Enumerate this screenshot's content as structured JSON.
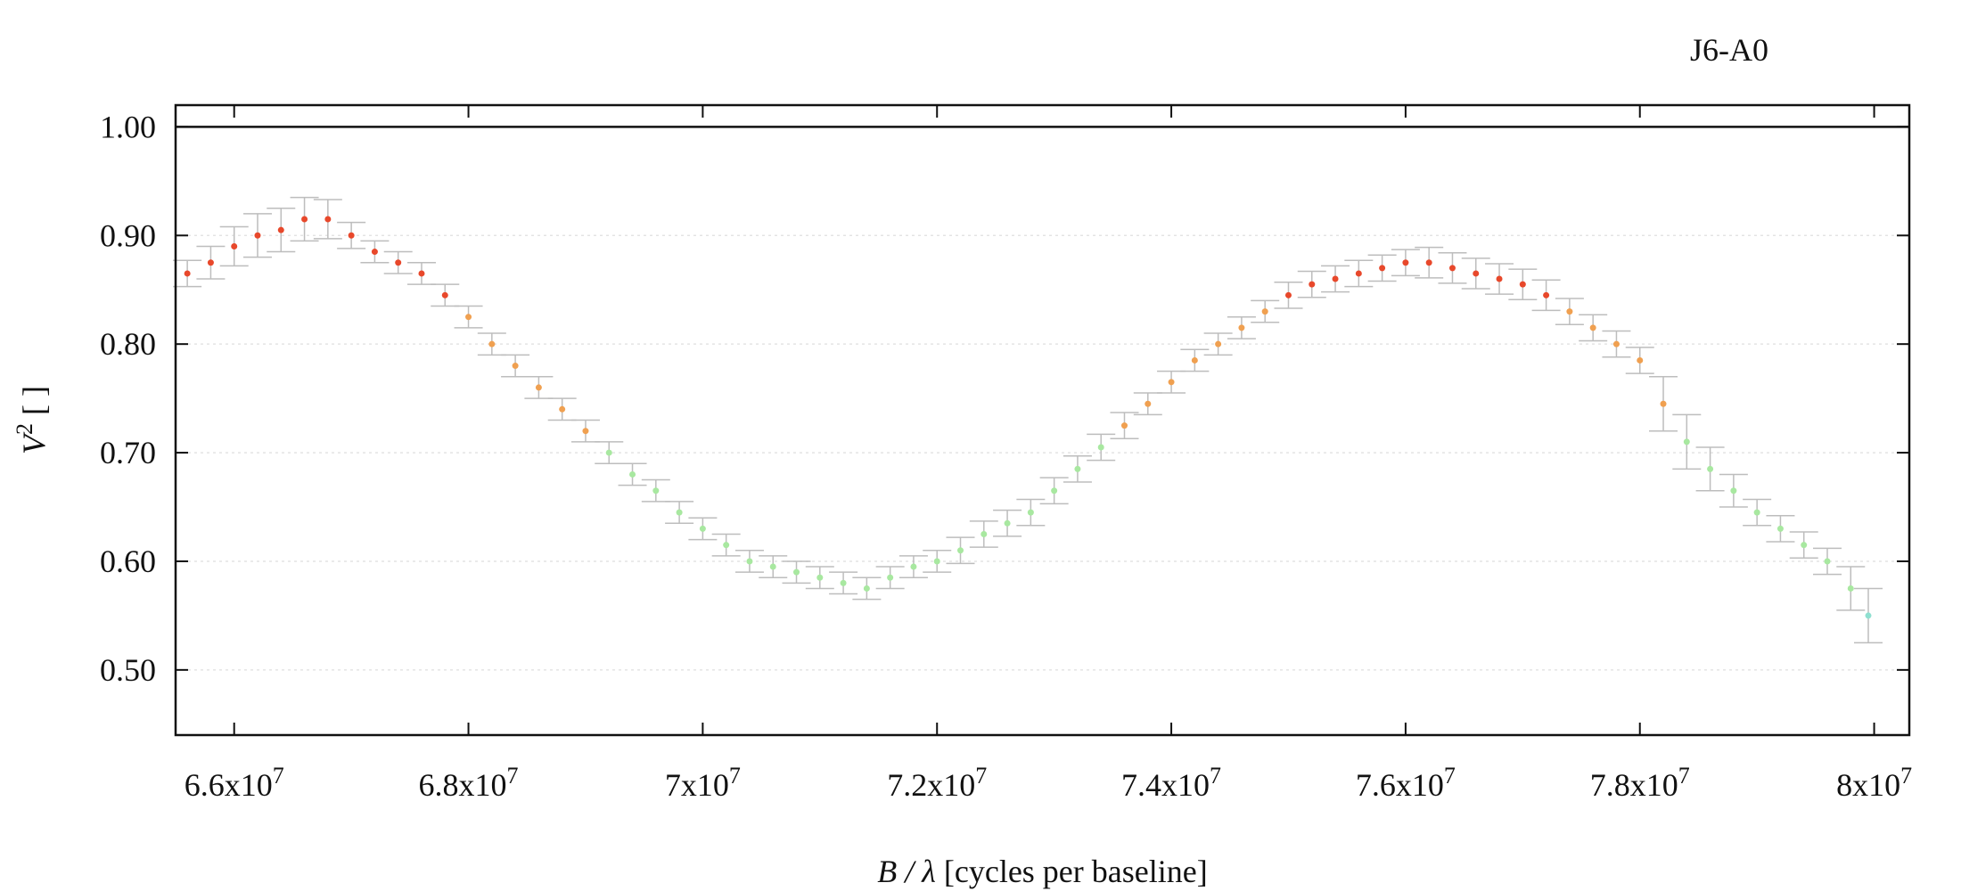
{
  "chart_data": {
    "type": "scatter",
    "title": "J6-A0",
    "xlabel": "B / λ [cycles per baseline]",
    "ylabel": "V² [ ]",
    "xlim": [
      65500000,
      80300000
    ],
    "ylim": [
      0.44,
      1.02
    ],
    "grid": {
      "x": false,
      "y": true
    },
    "reference_line": 1.0,
    "x_ticks": [
      {
        "value": 66000000,
        "label": "6.6x10",
        "exp": "7"
      },
      {
        "value": 68000000,
        "label": "6.8x10",
        "exp": "7"
      },
      {
        "value": 70000000,
        "label": "7x10",
        "exp": "7"
      },
      {
        "value": 72000000,
        "label": "7.2x10",
        "exp": "7"
      },
      {
        "value": 74000000,
        "label": "7.4x10",
        "exp": "7"
      },
      {
        "value": 76000000,
        "label": "7.6x10",
        "exp": "7"
      },
      {
        "value": 78000000,
        "label": "7.8x10",
        "exp": "7"
      },
      {
        "value": 80000000,
        "label": "8x10",
        "exp": "7"
      }
    ],
    "y_ticks": [
      {
        "value": 0.5,
        "label": "0.50"
      },
      {
        "value": 0.6,
        "label": "0.60"
      },
      {
        "value": 0.7,
        "label": "0.70"
      },
      {
        "value": 0.8,
        "label": "0.80"
      },
      {
        "value": 0.9,
        "label": "0.90"
      },
      {
        "value": 1.0,
        "label": "1.00"
      }
    ],
    "colors": {
      "high": "#e8482b",
      "mid": "#f0a050",
      "low": "#a8e8a0",
      "cyan": "#8fe0d0",
      "errorbar": "#bdbdbd"
    },
    "series": [
      {
        "x": [
          65600000,
          65800000,
          66000000,
          66200000,
          66400000,
          66600000,
          66800000,
          67000000,
          67200000,
          67400000,
          67600000,
          67800000,
          68000000,
          68200000,
          68400000,
          68600000,
          68800000,
          69000000,
          69200000,
          69400000,
          69600000,
          69800000,
          70000000,
          70200000,
          70400000,
          70600000,
          70800000,
          71000000,
          71200000,
          71400000,
          71600000,
          71800000,
          72000000,
          72200000,
          72400000,
          72600000,
          72800000,
          73000000,
          73200000,
          73400000,
          73600000,
          73800000,
          74000000,
          74200000,
          74400000,
          74600000,
          74800000,
          75000000,
          75200000,
          75400000,
          75600000,
          75800000,
          76000000,
          76200000,
          76400000,
          76600000,
          76800000,
          77000000,
          77200000,
          77400000,
          77600000,
          77800000,
          78000000,
          78200000,
          78400000,
          78600000,
          78800000,
          79000000,
          79200000,
          79400000,
          79600000,
          79800000,
          79950000
        ],
        "y": [
          0.865,
          0.875,
          0.89,
          0.9,
          0.905,
          0.915,
          0.915,
          0.9,
          0.885,
          0.875,
          0.865,
          0.845,
          0.825,
          0.8,
          0.78,
          0.76,
          0.74,
          0.72,
          0.7,
          0.68,
          0.665,
          0.645,
          0.63,
          0.615,
          0.6,
          0.595,
          0.59,
          0.585,
          0.58,
          0.575,
          0.585,
          0.595,
          0.6,
          0.61,
          0.625,
          0.635,
          0.645,
          0.665,
          0.685,
          0.705,
          0.725,
          0.745,
          0.765,
          0.785,
          0.8,
          0.815,
          0.83,
          0.845,
          0.855,
          0.86,
          0.865,
          0.87,
          0.875,
          0.875,
          0.87,
          0.865,
          0.86,
          0.855,
          0.845,
          0.83,
          0.815,
          0.8,
          0.785,
          0.745,
          0.71,
          0.685,
          0.665,
          0.645,
          0.63,
          0.615,
          0.6,
          0.575,
          0.55
        ],
        "err": [
          0.012,
          0.015,
          0.018,
          0.02,
          0.02,
          0.02,
          0.018,
          0.012,
          0.01,
          0.01,
          0.01,
          0.01,
          0.01,
          0.01,
          0.01,
          0.01,
          0.01,
          0.01,
          0.01,
          0.01,
          0.01,
          0.01,
          0.01,
          0.01,
          0.01,
          0.01,
          0.01,
          0.01,
          0.01,
          0.01,
          0.01,
          0.01,
          0.01,
          0.012,
          0.012,
          0.012,
          0.012,
          0.012,
          0.012,
          0.012,
          0.012,
          0.01,
          0.01,
          0.01,
          0.01,
          0.01,
          0.01,
          0.012,
          0.012,
          0.012,
          0.012,
          0.012,
          0.012,
          0.014,
          0.014,
          0.014,
          0.014,
          0.014,
          0.014,
          0.012,
          0.012,
          0.012,
          0.012,
          0.025,
          0.025,
          0.02,
          0.015,
          0.012,
          0.012,
          0.012,
          0.012,
          0.02,
          0.025
        ]
      }
    ]
  }
}
